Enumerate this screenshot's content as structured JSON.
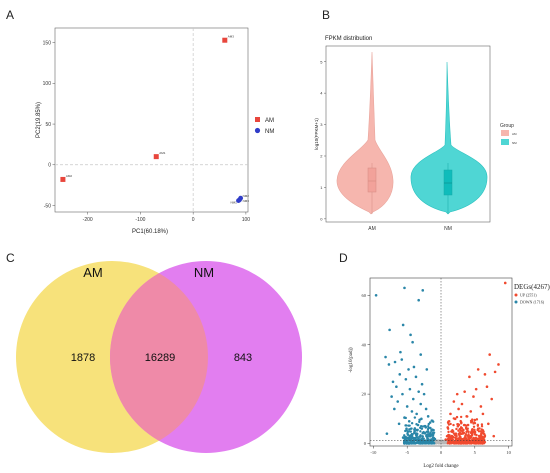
{
  "panels": {
    "a": "A",
    "b": "B",
    "c": "C",
    "d": "D"
  },
  "colors": {
    "am": "#e8463c",
    "nm": "#2f3cc8",
    "violin_am": "#f6b6ae",
    "violin_nm": "#4fd6d4",
    "venn_am": "#f7e27b",
    "venn_nm": "#e27ef0",
    "venn_overlap": "#ef8aa8",
    "up": "#f04a2f",
    "down": "#2a86a8",
    "ns": "#b9b9b9"
  },
  "chart_data": [
    {
      "id": "pca",
      "type": "scatter",
      "xlabel": "PC1(60.18%)",
      "ylabel": "PC2(19.85%)",
      "xlim": [
        -262,
        104
      ],
      "ylim": [
        -58,
        168
      ],
      "xticks": [
        -200,
        -100,
        0,
        100
      ],
      "yticks": [
        150,
        100,
        50,
        0,
        -50
      ],
      "grid": false,
      "zero_lines": true,
      "legend_position": "right",
      "legend": [
        {
          "name": "AM",
          "marker": "square"
        },
        {
          "name": "NM",
          "marker": "circle"
        }
      ],
      "series": [
        {
          "name": "AM",
          "points": [
            {
              "x": 60,
              "y": 153,
              "label": "AM3"
            },
            {
              "x": -70,
              "y": 10,
              "label": "AM1"
            },
            {
              "x": -247,
              "y": -18,
              "label": "AM2"
            }
          ]
        },
        {
          "name": "NM",
          "points": [
            {
              "x": 86,
              "y": -44,
              "label": "NM1"
            },
            {
              "x": 88,
              "y": -43,
              "label": "NM2"
            },
            {
              "x": 90,
              "y": -41,
              "label": "NM3"
            }
          ]
        }
      ]
    },
    {
      "id": "fpkm",
      "type": "violin",
      "title": "FPKM distribution",
      "ylabel": "log10(FPKM+1)",
      "ylim": [
        -0.1,
        5.5
      ],
      "yticks": [
        0,
        1,
        2,
        3,
        4,
        5
      ],
      "categories": [
        "AM",
        "NM"
      ],
      "legend_title": "Group",
      "legend_position": "right",
      "series": [
        {
          "name": "AM",
          "min": 0,
          "q1": 0.8,
          "median": 1.1,
          "q3": 1.45,
          "max": 5.0
        },
        {
          "name": "NM",
          "min": 0,
          "q1": 0.6,
          "median": 1.0,
          "q3": 1.4,
          "max": 4.7
        }
      ]
    },
    {
      "id": "venn",
      "type": "venn",
      "sets": [
        "AM",
        "NM"
      ],
      "values": {
        "AM_only": 1878,
        "overlap": 16289,
        "NM_only": 843
      }
    },
    {
      "id": "volcano",
      "type": "scatter",
      "xlabel": "Log2 fold change",
      "ylabel": "-log10(padj)",
      "xlim": [
        -10.5,
        10.5
      ],
      "ylim": [
        -1,
        67
      ],
      "xticks": [
        -10,
        -5,
        0,
        5,
        10
      ],
      "yticks": [
        0,
        20,
        40,
        60
      ],
      "threshold_y": 1.3,
      "legend_position": "top-right",
      "legend_title": "DEGs(4267)",
      "legend": [
        {
          "name": "UP (2551)",
          "color": "up"
        },
        {
          "name": "DOWN (1716)",
          "color": "down"
        }
      ],
      "highlight_points": {
        "up": [
          [
            9.5,
            65
          ],
          [
            8.5,
            32
          ],
          [
            7.2,
            36
          ],
          [
            8.0,
            29
          ],
          [
            6.5,
            28
          ],
          [
            5.5,
            30
          ],
          [
            4.2,
            27
          ],
          [
            6.8,
            23
          ],
          [
            5.2,
            22
          ],
          [
            3.5,
            21
          ],
          [
            2.4,
            20
          ],
          [
            4.8,
            19
          ],
          [
            7.5,
            18
          ],
          [
            1.9,
            17
          ],
          [
            3.1,
            16
          ],
          [
            5.9,
            15
          ],
          [
            2.6,
            14
          ],
          [
            4.4,
            13
          ],
          [
            1.4,
            12
          ],
          [
            6.2,
            12
          ],
          [
            3.8,
            11
          ],
          [
            2.1,
            10
          ],
          [
            5.0,
            9.5
          ],
          [
            1.2,
            9
          ],
          [
            3.0,
            8.5
          ],
          [
            7.0,
            8
          ],
          [
            4.0,
            7.5
          ],
          [
            2.5,
            7
          ],
          [
            1.0,
            6.5
          ],
          [
            5.5,
            6
          ],
          [
            3.3,
            5.5
          ],
          [
            1.7,
            5
          ],
          [
            6.1,
            4.5
          ],
          [
            2.2,
            4
          ],
          [
            4.6,
            3.5
          ],
          [
            0.9,
            3
          ],
          [
            3.6,
            2.6
          ],
          [
            1.5,
            2.2
          ],
          [
            5.1,
            2.0
          ],
          [
            2.8,
            1.8
          ],
          [
            0.7,
            1.6
          ],
          [
            4.1,
            1.5
          ],
          [
            7.8,
            3.0
          ]
        ],
        "down": [
          [
            -9.6,
            60
          ],
          [
            -5.4,
            63
          ],
          [
            -3.3,
            58
          ],
          [
            -2.7,
            62
          ],
          [
            -5.6,
            48
          ],
          [
            -7.6,
            46
          ],
          [
            -4.5,
            44
          ],
          [
            -4.2,
            41
          ],
          [
            -6.0,
            37
          ],
          [
            -3.0,
            36
          ],
          [
            -8.2,
            35
          ],
          [
            -5.8,
            34
          ],
          [
            -6.8,
            33
          ],
          [
            -7.7,
            32
          ],
          [
            -4.0,
            31
          ],
          [
            -4.8,
            30
          ],
          [
            -2.1,
            30
          ],
          [
            -6.1,
            28
          ],
          [
            -3.7,
            27
          ],
          [
            -5.2,
            26
          ],
          [
            -7.1,
            25
          ],
          [
            -2.8,
            24
          ],
          [
            -6.6,
            23
          ],
          [
            -4.6,
            22
          ],
          [
            -3.3,
            21
          ],
          [
            -5.7,
            20
          ],
          [
            -2.5,
            20
          ],
          [
            -7.3,
            19
          ],
          [
            -4.1,
            18
          ],
          [
            -6.4,
            17
          ],
          [
            -3.0,
            16
          ],
          [
            -5.0,
            15
          ],
          [
            -2.2,
            14
          ],
          [
            -6.9,
            14
          ],
          [
            -4.3,
            13
          ],
          [
            -3.6,
            12
          ],
          [
            -1.9,
            11
          ],
          [
            -5.4,
            10.5
          ],
          [
            -2.9,
            10
          ],
          [
            -4.7,
            9
          ],
          [
            -1.6,
            8.5
          ],
          [
            -6.2,
            8
          ],
          [
            -3.4,
            7.5
          ],
          [
            -2.4,
            7
          ],
          [
            -5.1,
            6
          ],
          [
            -1.4,
            5.5
          ],
          [
            -3.9,
            5
          ],
          [
            -2.7,
            4.2
          ],
          [
            -4.9,
            3.6
          ],
          [
            -1.2,
            3.2
          ],
          [
            -3.1,
            2.8
          ],
          [
            -5.6,
            2.4
          ],
          [
            -2.0,
            2.1
          ],
          [
            -0.9,
            1.8
          ],
          [
            -4.4,
            1.7
          ],
          [
            -8.0,
            4
          ]
        ]
      }
    }
  ]
}
